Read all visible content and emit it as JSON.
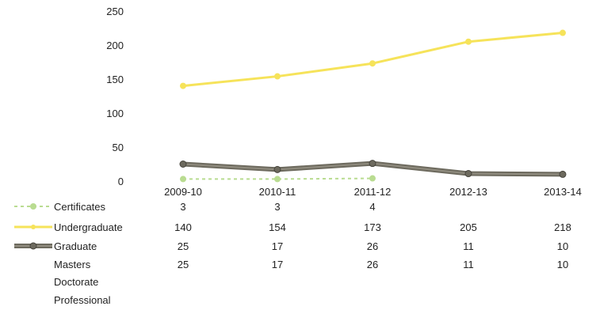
{
  "chart_data": {
    "type": "line",
    "categories": [
      "2009-10",
      "2010-11",
      "2011-12",
      "2012-13",
      "2013-14"
    ],
    "ylim": [
      0,
      250
    ],
    "yticks": [
      0,
      50,
      100,
      150,
      200,
      250
    ],
    "grid": false,
    "legend_placement": "data table rows below chart",
    "series": [
      {
        "name": "Certificates",
        "values": [
          3,
          3,
          4,
          null,
          null
        ],
        "table": [
          "3",
          "3",
          "4",
          "",
          ""
        ],
        "color": "#b9dc91",
        "style": "dashed"
      },
      {
        "name": "Undergraduate",
        "values": [
          140,
          154,
          173,
          205,
          218
        ],
        "table": [
          "140",
          "154",
          "173",
          "205",
          "218"
        ],
        "color": "#f6e35a",
        "style": "solid"
      },
      {
        "name": "Graduate",
        "values": [
          25,
          17,
          26,
          11,
          10
        ],
        "table": [
          "25",
          "17",
          "26",
          "11",
          "10"
        ],
        "color": "#6d6a5e",
        "style": "double"
      },
      {
        "name": "Masters",
        "values": [
          25,
          17,
          26,
          11,
          10
        ],
        "table": [
          "25",
          "17",
          "26",
          "11",
          "10"
        ],
        "color": null,
        "style": "none"
      },
      {
        "name": "Doctorate",
        "values": [
          null,
          null,
          null,
          null,
          null
        ],
        "table": [
          "",
          "",
          "",
          "",
          ""
        ],
        "color": null,
        "style": "none"
      },
      {
        "name": "Professional",
        "values": [
          null,
          null,
          null,
          null,
          null
        ],
        "table": [
          "",
          "",
          "",
          "",
          ""
        ],
        "color": null,
        "style": "none"
      }
    ]
  }
}
